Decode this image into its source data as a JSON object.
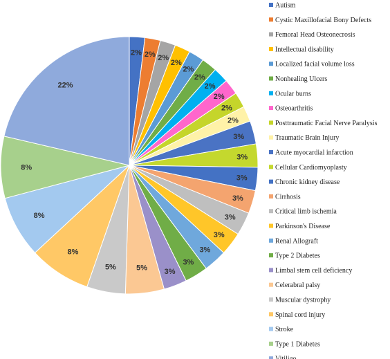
{
  "chart_data": {
    "type": "pie",
    "title": "",
    "legend_position": "right",
    "slices": [
      {
        "label": "Autism",
        "value": 2,
        "display": "2%",
        "color": "#4472c4"
      },
      {
        "label": "Cystic Maxillofacial Bony Defects",
        "value": 2,
        "display": "2%",
        "color": "#ed7d31"
      },
      {
        "label": "Femoral Head Osteonecrosis",
        "value": 2,
        "display": "2%",
        "color": "#a5a5a5"
      },
      {
        "label": "Intellectual disability",
        "value": 2,
        "display": "2%",
        "color": "#ffc000"
      },
      {
        "label": "Localized facial volume loss",
        "value": 2,
        "display": "2%",
        "color": "#5b9bd5"
      },
      {
        "label": "Nonhealing Ulcers",
        "value": 2,
        "display": "2%",
        "color": "#70ad47"
      },
      {
        "label": "Ocular burns",
        "value": 2,
        "display": "2%",
        "color": "#00b0f0"
      },
      {
        "label": "Osteoarthritis",
        "value": 2,
        "display": "2%",
        "color": "#ff66cc"
      },
      {
        "label": "Posttraumatic Facial Nerve Paralysis",
        "value": 2,
        "display": "2%",
        "color": "#c5d52b"
      },
      {
        "label": "Traumatic Brain Injury",
        "value": 2,
        "display": "2%",
        "color": "#fff2a8"
      },
      {
        "label": "Acute myocardial infarction",
        "value": 3,
        "display": "3%",
        "color": "#4a73c4"
      },
      {
        "label": "Cellular Cardiomyoplasty",
        "value": 3,
        "display": "3%",
        "color": "#c4d82e"
      },
      {
        "label": "Chronic kidney disease",
        "value": 3,
        "display": "3%",
        "color": "#4472c4"
      },
      {
        "label": "Cirrhosis",
        "value": 3,
        "display": "3%",
        "color": "#f4a46f"
      },
      {
        "label": "Critical limb ischemia",
        "value": 3,
        "display": "3%",
        "color": "#bfbfbf"
      },
      {
        "label": "Parkinson's Disease",
        "value": 3,
        "display": "3%",
        "color": "#ffc629"
      },
      {
        "label": "Renal Allograft",
        "value": 3,
        "display": "3%",
        "color": "#6fa8dc"
      },
      {
        "label": "Type 2 Diabetes",
        "value": 3,
        "display": "3%",
        "color": "#70ad47"
      },
      {
        "label": "Limbal stem cell deficiency",
        "value": 3,
        "display": "3%",
        "color": "#9a90c9"
      },
      {
        "label": "Celerabral palsy",
        "value": 5,
        "display": "5%",
        "color": "#fbc893"
      },
      {
        "label": "Muscular dystrophy",
        "value": 5,
        "display": "5%",
        "color": "#c9c9c9"
      },
      {
        "label": "Spinal cord injury",
        "value": 8,
        "display": "8%",
        "color": "#ffc866"
      },
      {
        "label": "Stroke",
        "value": 8,
        "display": "8%",
        "color": "#a3c9ef"
      },
      {
        "label": "Type 1 Diabetes",
        "value": 8,
        "display": "8%",
        "color": "#a7d08c"
      },
      {
        "label": "Vitiligo",
        "value": 22,
        "display": "22%",
        "color": "#8faadc"
      }
    ]
  }
}
